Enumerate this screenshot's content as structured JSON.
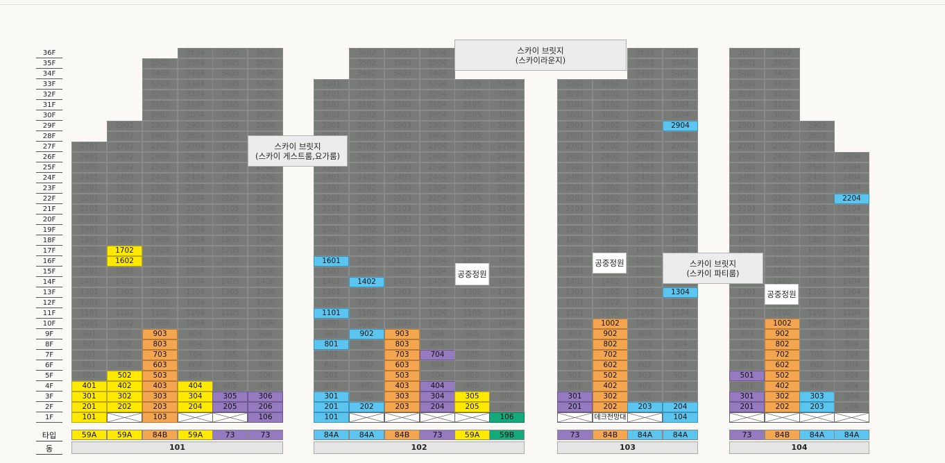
{
  "floor_labels": [
    "36F",
    "35F",
    "34F",
    "33F",
    "32F",
    "31F",
    "30F",
    "29F",
    "28F",
    "27F",
    "26F",
    "25F",
    "24F",
    "23F",
    "22F",
    "21F",
    "20F",
    "19F",
    "18F",
    "17F",
    "16F",
    "15F",
    "14F",
    "13F",
    "12F",
    "11F",
    "10F",
    "9F",
    "8F",
    "7F",
    "6F",
    "5F",
    "4F",
    "3F",
    "2F",
    "1F"
  ],
  "row_labels": {
    "type": "타입",
    "dong": "동"
  },
  "colors": {
    "gray": "#777a76",
    "yellow": "#ffe900",
    "orange": "#f4a54f",
    "purple": "#957ac0",
    "blue": "#5bc4ef",
    "green": "#14a97a"
  },
  "buildings": [
    {
      "dong": "101",
      "columns": [
        {
          "type": "59A",
          "type_color": "yellow",
          "top": 27,
          "overrides": {
            "1": [
              "101",
              "yellow"
            ],
            "2": [
              "201",
              "yellow"
            ],
            "3": [
              "301",
              "yellow"
            ],
            "4": [
              "401",
              "yellow"
            ]
          }
        },
        {
          "type": "59A",
          "type_color": "yellow",
          "top": 29,
          "overrides": {
            "1": [
              "",
              "x"
            ],
            "2": [
              "202",
              "yellow"
            ],
            "3": [
              "302",
              "yellow"
            ],
            "4": [
              "402",
              "yellow"
            ],
            "5": [
              "502",
              "yellow"
            ],
            "16": [
              "1602",
              "yellow"
            ],
            "17": [
              "1702",
              "yellow"
            ]
          }
        },
        {
          "type": "84B",
          "type_color": "orange",
          "top": 35,
          "overrides": {
            "1": [
              "103",
              "orange"
            ],
            "2": [
              "203",
              "orange"
            ],
            "3": [
              "303",
              "orange"
            ],
            "4": [
              "403",
              "orange"
            ],
            "5": [
              "503",
              "orange"
            ],
            "6": [
              "603",
              "orange"
            ],
            "7": [
              "703",
              "orange"
            ],
            "8": [
              "803",
              "orange"
            ],
            "9": [
              "903",
              "orange"
            ]
          }
        },
        {
          "type": "59A",
          "type_color": "yellow",
          "top": 36,
          "overrides": {
            "1": [
              "",
              "x"
            ],
            "2": [
              "204",
              "yellow"
            ],
            "3": [
              "304",
              "yellow"
            ],
            "4": [
              "404",
              "yellow"
            ]
          }
        },
        {
          "type": "73",
          "type_color": "purple",
          "top": 36,
          "overrides": {
            "1": [
              "",
              "x"
            ],
            "2": [
              "205",
              "purple"
            ],
            "3": [
              "305",
              "purple"
            ]
          }
        },
        {
          "type": "73",
          "type_color": "purple",
          "top": 36,
          "overrides": {
            "1": [
              "106",
              "purple"
            ],
            "2": [
              "206",
              "purple"
            ],
            "3": [
              "306",
              "purple"
            ]
          }
        }
      ]
    },
    {
      "dong": "102",
      "columns": [
        {
          "type": "84A",
          "type_color": "blue",
          "top": 33,
          "overrides": {
            "1": [
              "101",
              "blue"
            ],
            "2": [
              "201",
              "blue"
            ],
            "3": [
              "301",
              "blue"
            ],
            "8": [
              "801",
              "blue"
            ],
            "11": [
              "1101",
              "blue"
            ],
            "16": [
              "1601",
              "blue"
            ]
          }
        },
        {
          "type": "84A",
          "type_color": "blue",
          "top": 36,
          "overrides": {
            "1": [
              "",
              "x"
            ],
            "2": [
              "202",
              "blue"
            ],
            "9": [
              "902",
              "blue"
            ],
            "14": [
              "1402",
              "blue"
            ]
          }
        },
        {
          "type": "84B",
          "type_color": "orange",
          "top": 36,
          "overrides": {
            "1": [
              "",
              "x"
            ],
            "2": [
              "203",
              "orange"
            ],
            "3": [
              "303",
              "orange"
            ],
            "4": [
              "403",
              "orange"
            ],
            "5": [
              "503",
              "orange"
            ],
            "6": [
              "603",
              "orange"
            ],
            "7": [
              "703",
              "orange"
            ],
            "8": [
              "803",
              "orange"
            ],
            "9": [
              "903",
              "orange"
            ]
          }
        },
        {
          "type": "73",
          "type_color": "purple",
          "top": 36,
          "overrides": {
            "1": [
              "",
              "x"
            ],
            "2": [
              "204",
              "purple"
            ],
            "3": [
              "304",
              "purple"
            ],
            "4": [
              "404",
              "purple"
            ],
            "7": [
              "704",
              "purple"
            ]
          }
        },
        {
          "type": "59A",
          "type_color": "yellow",
          "top": 33,
          "overrides": {
            "1": [
              "",
              "x"
            ],
            "2": [
              "205",
              "yellow"
            ],
            "3": [
              "305",
              "yellow"
            ]
          }
        },
        {
          "type": "59B",
          "type_color": "green",
          "top": 33,
          "overrides": {
            "1": [
              "106",
              "green"
            ]
          }
        }
      ]
    },
    {
      "dong": "103",
      "columns": [
        {
          "type": "73",
          "type_color": "purple",
          "top": 33,
          "overrides": {
            "1": [
              "",
              "x"
            ],
            "2": [
              "201",
              "purple"
            ],
            "3": [
              "301",
              "purple"
            ]
          }
        },
        {
          "type": "84B",
          "type_color": "orange",
          "top": 33,
          "overrides": {
            "1": [
              "데크전망대",
              "txt"
            ],
            "2": [
              "202",
              "orange"
            ],
            "3": [
              "302",
              "orange"
            ],
            "4": [
              "402",
              "orange"
            ],
            "5": [
              "502",
              "orange"
            ],
            "6": [
              "602",
              "orange"
            ],
            "7": [
              "702",
              "orange"
            ],
            "8": [
              "802",
              "orange"
            ],
            "9": [
              "902",
              "orange"
            ],
            "10": [
              "1002",
              "orange"
            ]
          }
        },
        {
          "type": "84A",
          "type_color": "blue",
          "top": 36,
          "overrides": {
            "1": [
              "",
              "x"
            ],
            "2": [
              "203",
              "blue"
            ]
          }
        },
        {
          "type": "84A",
          "type_color": "blue",
          "top": 36,
          "overrides": {
            "1": [
              "104",
              "blue"
            ],
            "2": [
              "204",
              "blue"
            ],
            "13": [
              "1304",
              "blue"
            ],
            "29": [
              "2904",
              "blue"
            ]
          }
        }
      ]
    },
    {
      "dong": "104",
      "columns": [
        {
          "type": "73",
          "type_color": "purple",
          "top": 36,
          "overrides": {
            "1": [
              "",
              "x"
            ],
            "2": [
              "201",
              "purple"
            ],
            "3": [
              "301",
              "purple"
            ],
            "5": [
              "501",
              "purple"
            ]
          }
        },
        {
          "type": "84B",
          "type_color": "orange",
          "top": 36,
          "overrides": {
            "1": [
              "",
              "x"
            ],
            "2": [
              "202",
              "orange"
            ],
            "3": [
              "302",
              "orange"
            ],
            "4": [
              "402",
              "orange"
            ],
            "5": [
              "502",
              "orange"
            ],
            "6": [
              "602",
              "orange"
            ],
            "7": [
              "702",
              "orange"
            ],
            "8": [
              "802",
              "orange"
            ],
            "9": [
              "902",
              "orange"
            ],
            "10": [
              "1002",
              "orange"
            ]
          }
        },
        {
          "type": "84A",
          "type_color": "blue",
          "top": 29,
          "overrides": {
            "1": [
              "",
              "x"
            ],
            "2": [
              "203",
              "blue"
            ],
            "3": [
              "303",
              "blue"
            ]
          }
        },
        {
          "type": "84A",
          "type_color": "blue",
          "top": 26,
          "overrides": {
            "1": [
              "",
              "x"
            ],
            "22": [
              "2204",
              "blue"
            ]
          }
        }
      ]
    }
  ],
  "bridges": [
    {
      "id": "101-102",
      "line1": "스카이 브릿지",
      "line2": "(스카이 게스트룸,요가룸)"
    },
    {
      "id": "102-103",
      "line1": "스카이 브릿지",
      "line2": "(스카이라운지)"
    },
    {
      "id": "103-104",
      "line1": "스카이 브릿지",
      "line2": "(스카이 파티룸)"
    }
  ],
  "gardens": [
    "공중정원",
    "공중정원",
    "공중정원"
  ]
}
